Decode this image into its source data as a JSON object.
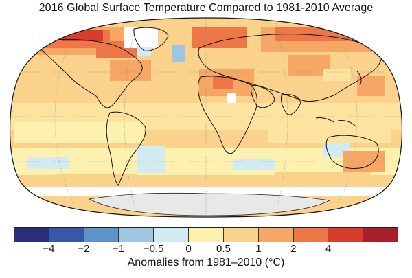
{
  "title": "2016 Global Surface Temperature Compared to 1981-2010 Average",
  "legend": {
    "label": "Anomalies from 1981–2010 (°C)",
    "ticks": [
      "−4",
      "−2",
      "−1",
      "−0.5",
      "0",
      "0.5",
      "1",
      "2",
      "4"
    ],
    "colors": [
      "#2b2f7a",
      "#3a56a6",
      "#5f93c7",
      "#9ec6e0",
      "#d2ebf3",
      "#fdf1b0",
      "#fbd28c",
      "#f6a766",
      "#ee7747",
      "#d83c2a",
      "#a8202c"
    ]
  },
  "map": {
    "land_color": "#e8e8e8",
    "no_data_color": "#ffffff"
  }
}
